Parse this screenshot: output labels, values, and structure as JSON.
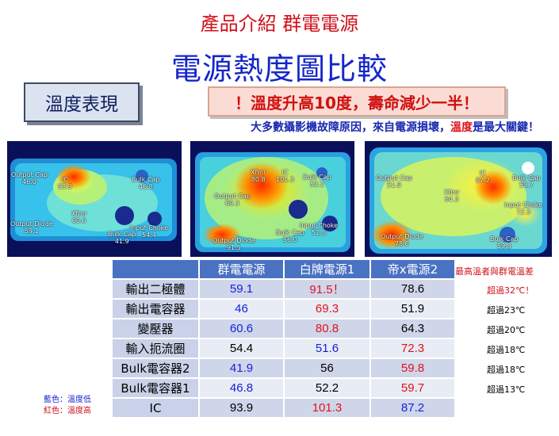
{
  "subtitle": "產品介紹 群電電源",
  "title": "電源熱度圖比較",
  "tag": "溫度表現",
  "banner": "！溫度升高10度，壽命減少一半！",
  "statement": {
    "part1": "大多數攝影機故障原因，來自電源損壞，",
    "highlight": "溫度",
    "part2": "是最大關鍵！"
  },
  "thermal_images": [
    {
      "labels": [
        {
          "text": "Output Cap",
          "value": "46.0"
        },
        {
          "text": "IC",
          "value": "93.9"
        },
        {
          "text": "Bulk Cap",
          "value": "46.8"
        },
        {
          "text": "Xfmr",
          "value": "60.6"
        },
        {
          "text": "Output Diode",
          "value": "59.1"
        },
        {
          "text": "Bulk Cap",
          "value": "41.9"
        },
        {
          "text": "Input Choke",
          "value": "54.4"
        }
      ]
    },
    {
      "labels": [
        {
          "text": "Xfmr",
          "value": "80.8"
        },
        {
          "text": "IC",
          "value": "101.3"
        },
        {
          "text": "Bulk Cap",
          "value": "52.2"
        },
        {
          "text": "Output Cap",
          "value": "69.3"
        },
        {
          "text": "Input Choke",
          "value": "51.6"
        },
        {
          "text": "Bulk Cap",
          "value": "56.0"
        },
        {
          "text": "Output Diode",
          "value": "91.5"
        }
      ]
    },
    {
      "labels": [
        {
          "text": "Output Cap",
          "value": "51.9"
        },
        {
          "text": "IC",
          "value": "87.2"
        },
        {
          "text": "Bulk Cap",
          "value": "59.7"
        },
        {
          "text": "Xfmr",
          "value": "64.3"
        },
        {
          "text": "Input Choke",
          "value": "72.3"
        },
        {
          "text": "Output Diode",
          "value": "78.6"
        },
        {
          "text": "Bulk Cap",
          "value": "59.8"
        }
      ]
    }
  ],
  "table": {
    "headers": [
      "群電電源",
      "白牌電源1",
      "帝x電源2"
    ],
    "rows": [
      {
        "label": "輸出二極體",
        "values": [
          "59.1",
          "91.5！",
          "78.6"
        ],
        "colors": [
          "blue",
          "red",
          "black"
        ],
        "diff": "超過32℃！",
        "diff_color": "red"
      },
      {
        "label": "輸出電容器",
        "values": [
          "46",
          "69.3",
          "51.9"
        ],
        "colors": [
          "blue",
          "red",
          "black"
        ],
        "diff": "超過23℃",
        "diff_color": "black"
      },
      {
        "label": "變壓器",
        "values": [
          "60.6",
          "80.8",
          "64.3"
        ],
        "colors": [
          "blue",
          "red",
          "black"
        ],
        "diff": "超過20℃",
        "diff_color": "black"
      },
      {
        "label": "輸入扼流圈",
        "values": [
          "54.4",
          "51.6",
          "72.3"
        ],
        "colors": [
          "black",
          "blue",
          "red"
        ],
        "diff": "超過18℃",
        "diff_color": "black"
      },
      {
        "label": "Bulk電容器2",
        "values": [
          "41.9",
          "56",
          "59.8"
        ],
        "colors": [
          "blue",
          "black",
          "red"
        ],
        "diff": "超過18℃",
        "diff_color": "black"
      },
      {
        "label": "Bulk電容器1",
        "values": [
          "46.8",
          "52.2",
          "59.7"
        ],
        "colors": [
          "blue",
          "black",
          "red"
        ],
        "diff": "超過13℃",
        "diff_color": "black"
      },
      {
        "label": "IC",
        "values": [
          "93.9",
          "101.3",
          "87.2"
        ],
        "colors": [
          "black",
          "red",
          "blue"
        ],
        "diff": "",
        "diff_color": "black"
      }
    ]
  },
  "diff_header": "最高溫者與群電溫差",
  "legend": {
    "blue_note": "藍色：溫度低",
    "red_note": "紅色：溫度高"
  },
  "colors": {
    "title_blue": "#1526c8",
    "accent_red": "#d0121b",
    "table_header": "#4a72c2"
  }
}
